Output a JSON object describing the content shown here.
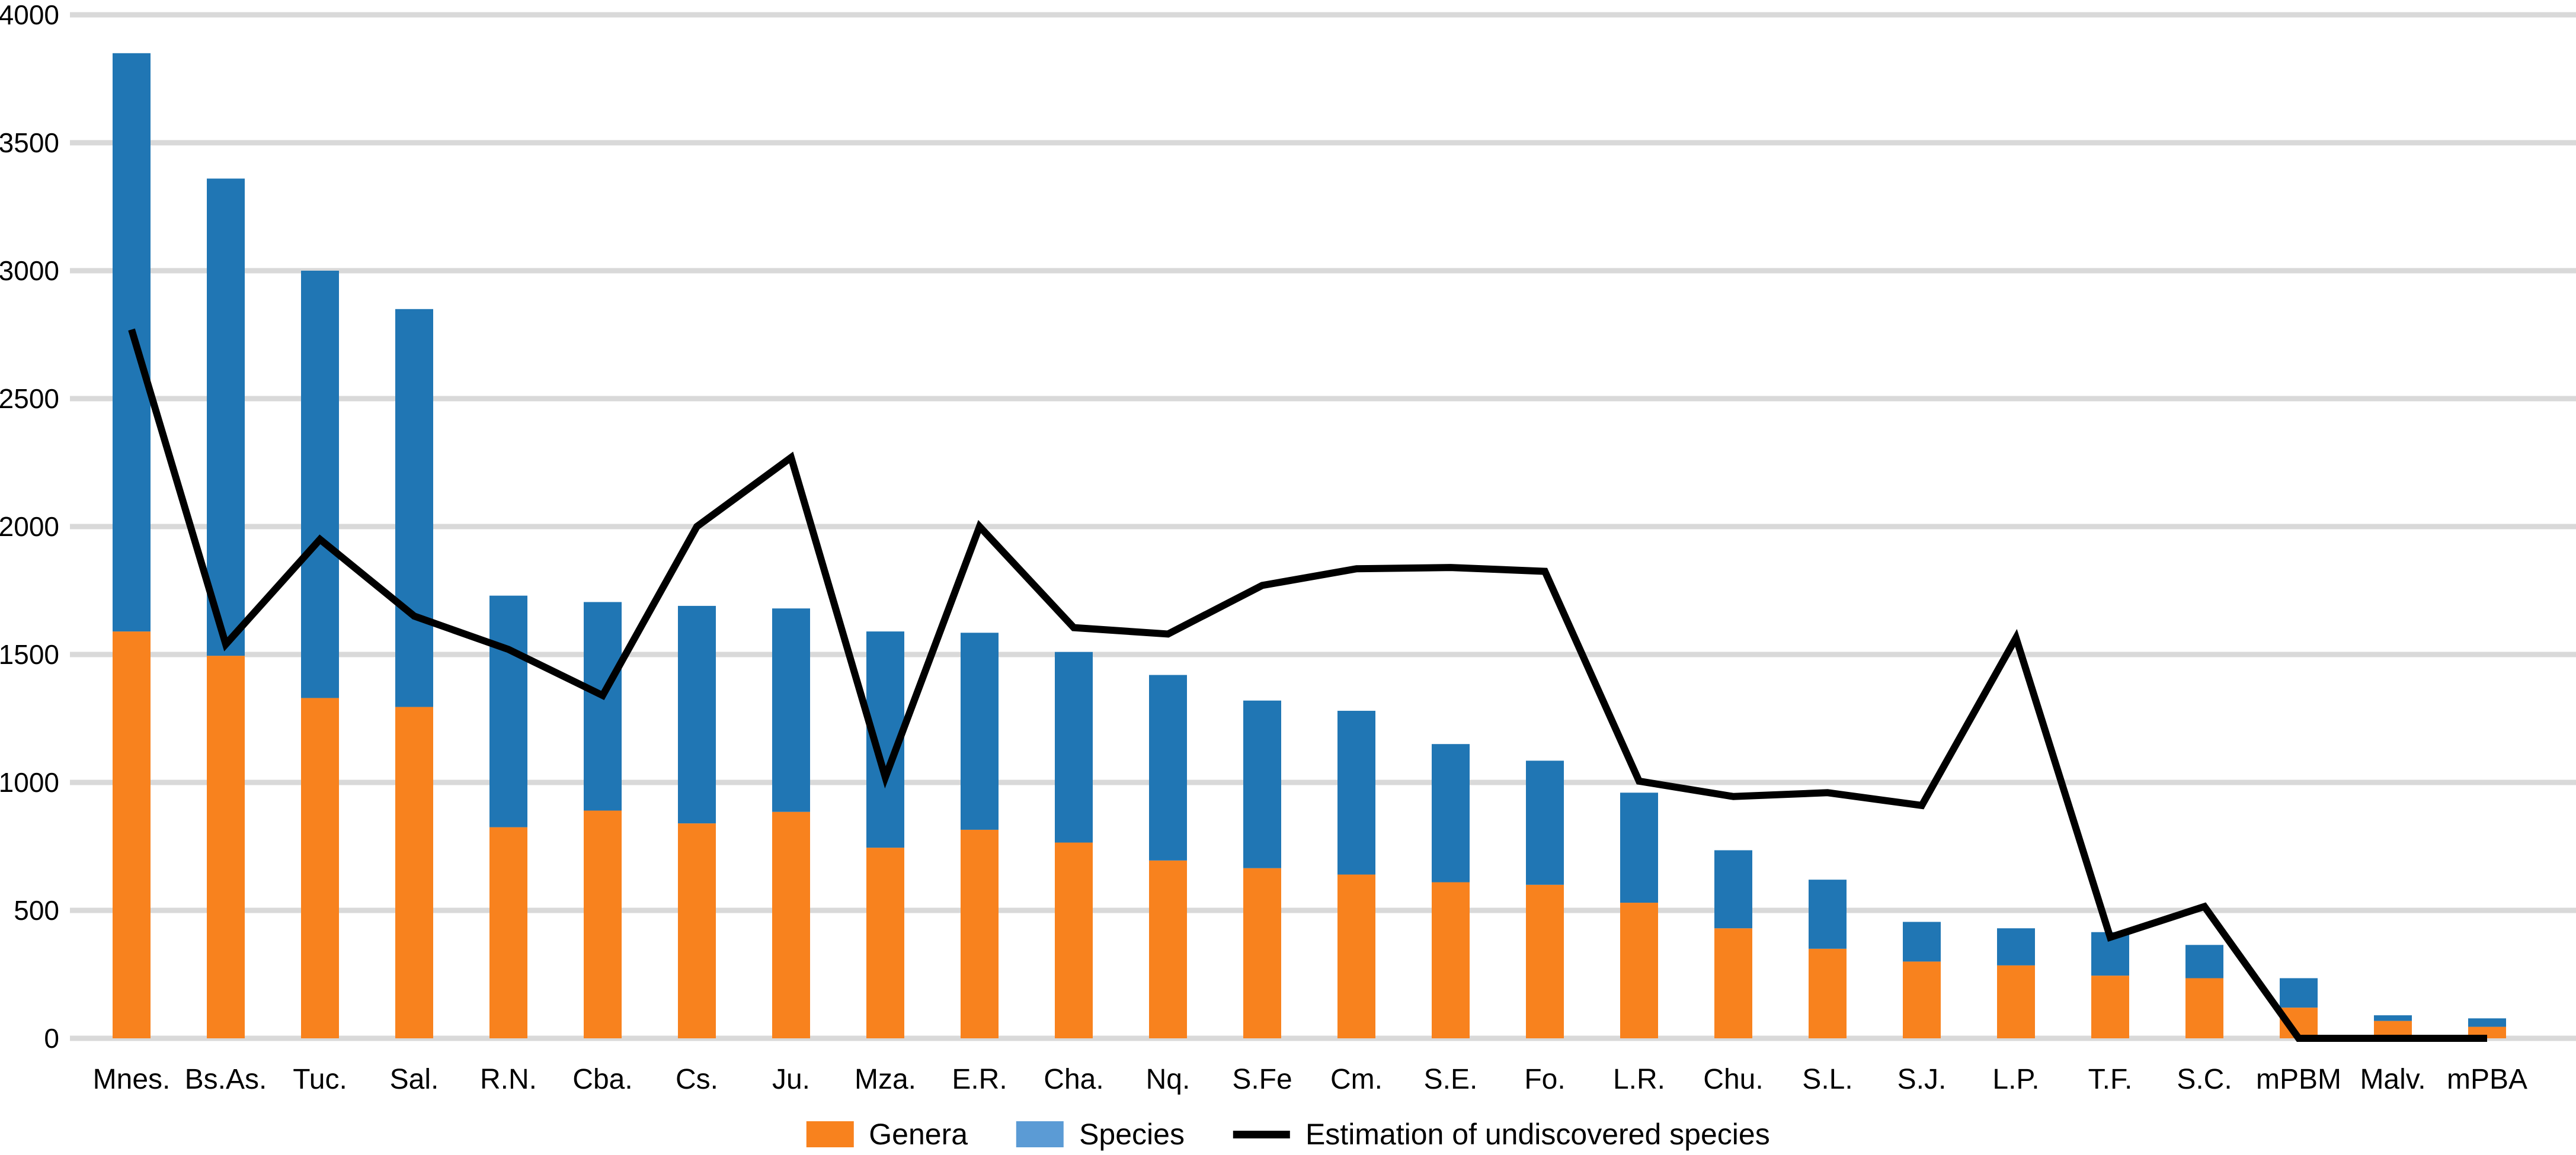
{
  "chart_data": {
    "type": "bar",
    "stacked": true,
    "title": "",
    "xlabel": "",
    "ylabel": "",
    "ylim": [
      0,
      4000
    ],
    "ytick_step": 500,
    "y_tick_labels": [
      "0",
      "500",
      "1000",
      "1500",
      "2000",
      "2500",
      "3000",
      "3500",
      "4000"
    ],
    "grid": true,
    "legend_position": "bottom",
    "categories": [
      "Mnes.",
      "Bs.As.",
      "Tuc.",
      "Sal.",
      "R.N.",
      "Cba.",
      "Cs.",
      "Ju.",
      "Mza.",
      "E.R.",
      "Cha.",
      "Nq.",
      "S.Fe",
      "Cm.",
      "S.E.",
      "Fo.",
      "L.R.",
      "Chu.",
      "S.L.",
      "S.J.",
      "L.P.",
      "T.F.",
      "S.C.",
      "mPBM",
      "Malv.",
      "mPBA"
    ],
    "series": [
      {
        "name": "Genera",
        "type": "bar",
        "color": "#F8821E",
        "values": [
          1590,
          1495,
          1330,
          1295,
          825,
          890,
          840,
          885,
          745,
          815,
          765,
          695,
          665,
          640,
          610,
          600,
          530,
          430,
          350,
          300,
          285,
          245,
          235,
          120,
          68,
          45
        ]
      },
      {
        "name": "Species",
        "type": "bar",
        "color": "#2076B4",
        "values": [
          2260,
          1865,
          1670,
          1555,
          905,
          815,
          850,
          795,
          845,
          770,
          745,
          725,
          655,
          640,
          540,
          485,
          430,
          305,
          270,
          155,
          145,
          170,
          130,
          115,
          22,
          33
        ]
      },
      {
        "name": "Estimation of undiscovered species",
        "type": "line",
        "color": "#000000",
        "values": [
          2770,
          1540,
          1950,
          1650,
          1520,
          1340,
          2000,
          2270,
          1020,
          2000,
          1605,
          1580,
          1770,
          1835,
          1840,
          1825,
          1005,
          945,
          960,
          910,
          1565,
          395,
          515,
          0,
          0,
          0
        ]
      }
    ]
  },
  "colors": {
    "background": "#FFFFFF",
    "gridline": "#D9D9D9",
    "genera_bar": "#F8821E",
    "species_bar": "#2076B4",
    "estimation_line": "#000000",
    "legend_genera_swatch": "#F8821E",
    "legend_species_swatch": "#5B9BD5"
  },
  "legend": {
    "items": [
      {
        "label": "Genera",
        "swatch": "genera-swatch"
      },
      {
        "label": "Species",
        "swatch": "species-swatch"
      },
      {
        "label": "Estimation of undiscovered species",
        "swatch": "line-sample"
      }
    ]
  }
}
